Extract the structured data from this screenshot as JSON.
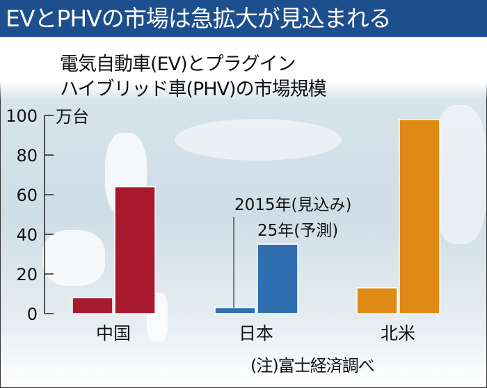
{
  "header": {
    "title": "EVとPHVの市場は急拡大が見込まれる"
  },
  "chart_data": {
    "type": "bar",
    "title": [
      "電気自動車(EV)とプラグイン",
      "ハイブリッド車(PHV)の市場規模"
    ],
    "ylabel": "万台",
    "ylim": [
      0,
      100
    ],
    "yticks": [
      "0",
      "20",
      "40",
      "60",
      "80",
      "100"
    ],
    "categories": [
      "中国",
      "日本",
      "北米"
    ],
    "series": [
      {
        "name": "2015年(見込み)",
        "values": [
          8,
          3,
          13
        ]
      },
      {
        "name": "25年(予測)",
        "values": [
          64,
          35,
          98
        ]
      }
    ],
    "colors": {
      "中国": "#a8192e",
      "日本": "#2f6fb0",
      "北米": "#de8a14"
    },
    "annotation": [
      "2015年(見込み)",
      "25年(予測)"
    ],
    "grid": false,
    "note": "(注)富士経済調べ"
  }
}
